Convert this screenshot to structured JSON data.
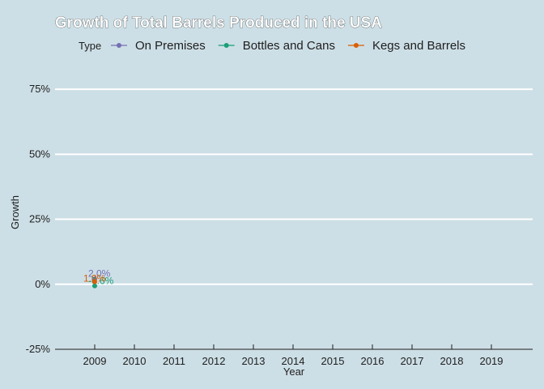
{
  "chart_data": {
    "type": "line",
    "title": "Growth of Total Barrels Produced in the USA",
    "xlabel": "Year",
    "ylabel": "Growth",
    "legend": {
      "title": "Type",
      "placement": "top",
      "entries": [
        "On Premises",
        "Bottles and Cans",
        "Kegs and Barrels"
      ]
    },
    "categories": [
      2009,
      2010,
      2011,
      2012,
      2013,
      2014,
      2015,
      2016,
      2017,
      2018,
      2019
    ],
    "x_tick_labels": [
      "2009",
      "2010",
      "2011",
      "2012",
      "2013",
      "2014",
      "2015",
      "2016",
      "2017",
      "2018",
      "2019"
    ],
    "ylim": [
      -25,
      85
    ],
    "y_ticks": [
      -25,
      0,
      25,
      50,
      75
    ],
    "y_tick_labels": [
      "-25%",
      "0%",
      "25%",
      "50%",
      "75%"
    ],
    "grid": "horizontal",
    "series": [
      {
        "name": "On Premises",
        "color": "#7570b3",
        "x": [
          2009
        ],
        "values": [
          2.0
        ],
        "labels": [
          "2.0%"
        ]
      },
      {
        "name": "Bottles and Cans",
        "color": "#1b9e77",
        "x": [
          2009
        ],
        "values": [
          -0.6
        ],
        "labels": [
          "-0.6%"
        ]
      },
      {
        "name": "Kegs and Barrels",
        "color": "#d95f02",
        "x": [
          2009
        ],
        "values": [
          1.0
        ],
        "labels": [
          "1.0%"
        ]
      }
    ]
  }
}
